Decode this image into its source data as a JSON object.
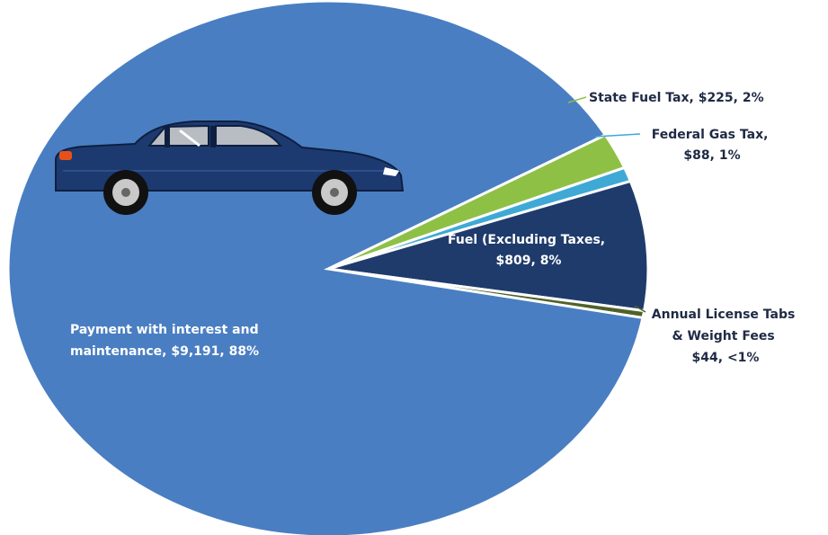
{
  "chart_data": {
    "type": "pie",
    "unit": "$",
    "slices": [
      {
        "label": "Payment with interest and maintenance",
        "value": 9191,
        "percent_label": "88%",
        "color": "#4a7ec2",
        "label_lines": [
          "Payment with interest and",
          "maintenance, $9,191, 88%"
        ]
      },
      {
        "label": "State Fuel Tax",
        "value": 225,
        "percent_label": "2%",
        "color": "#8fc046",
        "label_lines": [
          "State Fuel Tax, $225, 2%"
        ]
      },
      {
        "label": "Federal Gas Tax",
        "value": 88,
        "percent_label": "1%",
        "color": "#3fa9d5",
        "label_lines": [
          "Federal Gas Tax,",
          "$88, 1%"
        ]
      },
      {
        "label": "Fuel (Excluding Taxes",
        "value": 809,
        "percent_label": "8%",
        "color": "#1f3b6b",
        "label_lines": [
          "Fuel (Excluding Taxes,",
          "$809, 8%"
        ]
      },
      {
        "label": "Annual License Tabs & Weight Fees",
        "value": 44,
        "percent_label": "<1%",
        "color": "#4f6228",
        "label_lines": [
          "Annual License Tabs",
          "& Weight Fees",
          "$44, <1%"
        ]
      }
    ]
  },
  "illustration": {
    "icon": "car-icon",
    "body_color": "#1d3a70"
  }
}
